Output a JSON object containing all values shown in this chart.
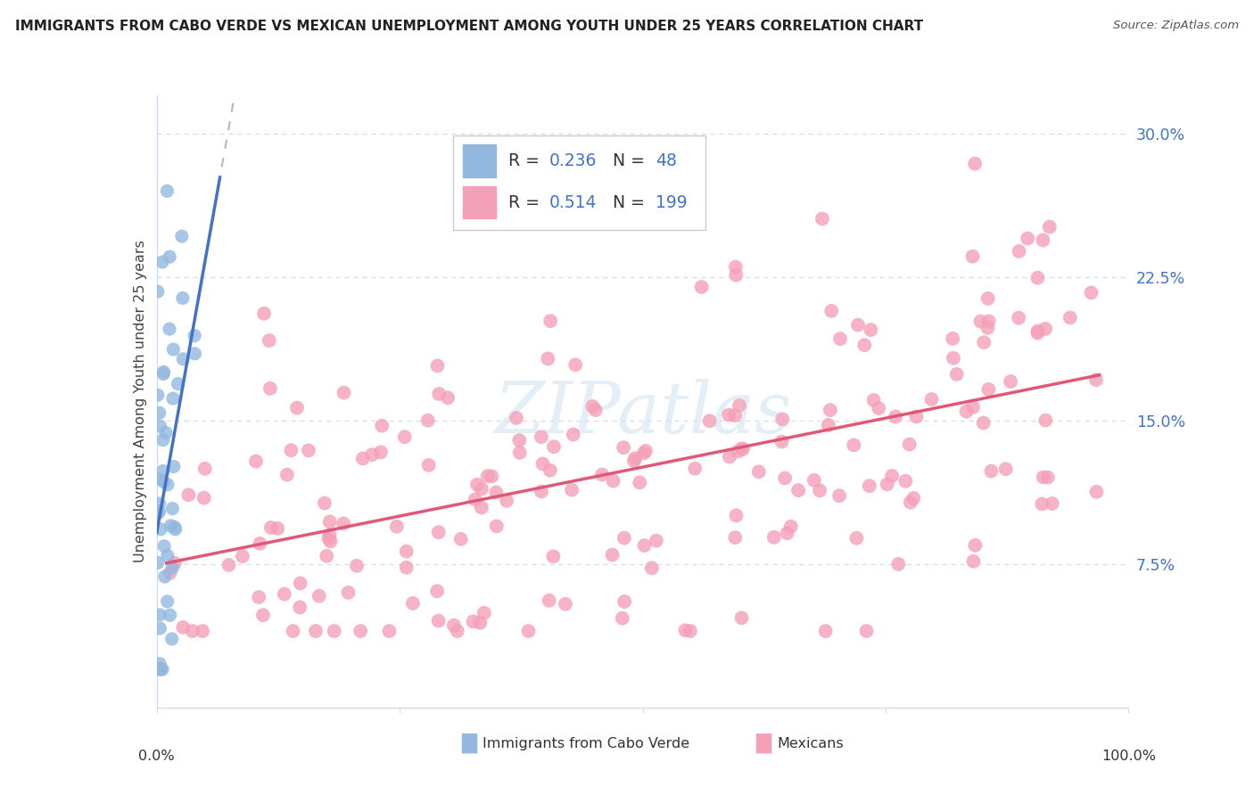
{
  "title": "IMMIGRANTS FROM CABO VERDE VS MEXICAN UNEMPLOYMENT AMONG YOUTH UNDER 25 YEARS CORRELATION CHART",
  "source": "Source: ZipAtlas.com",
  "ylabel": "Unemployment Among Youth under 25 years",
  "yticks": [
    0.075,
    0.15,
    0.225,
    0.3
  ],
  "ytick_labels": [
    "7.5%",
    "15.0%",
    "22.5%",
    "30.0%"
  ],
  "xlim": [
    0.0,
    1.0
  ],
  "ylim": [
    0.0,
    0.32
  ],
  "watermark": "ZIPatlas",
  "cabo_verde_color": "#92b8e0",
  "cabo_verde_edge": "#92b8e0",
  "mexicans_color": "#f4a0b8",
  "mexicans_edge": "#f4a0b8",
  "cabo_verde_line_color": "#4472c4",
  "mexicans_line_color": "#e05878",
  "cabo_verde_dashed_color": "#aabbcc",
  "cabo_verde_R": 0.236,
  "cabo_verde_N": 48,
  "mexicans_R": 0.514,
  "mexicans_N": 199,
  "legend_text_color": "#333333",
  "legend_value_color": "#4472c4",
  "grid_color": "#d0dde8",
  "spine_color": "#d0dde8",
  "ytick_color": "#4472c4",
  "title_color": "#222222",
  "source_color": "#555555",
  "bottom_label_color": "#333333"
}
